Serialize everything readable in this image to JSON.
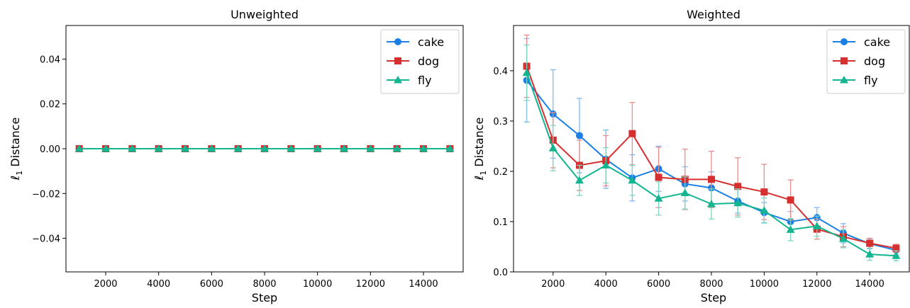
{
  "chart_data": [
    {
      "type": "line",
      "title": "Unweighted",
      "xlabel": "Step",
      "ylabel": "ℓ1 Distance",
      "x": [
        1000,
        2000,
        3000,
        4000,
        5000,
        6000,
        7000,
        8000,
        9000,
        10000,
        11000,
        12000,
        13000,
        14000,
        15000
      ],
      "xlim": [
        500,
        15500
      ],
      "ylim": [
        -0.055,
        0.055
      ],
      "xticks": [
        2000,
        4000,
        6000,
        8000,
        10000,
        12000,
        14000
      ],
      "xtick_labels": [
        "2000",
        "4000",
        "6000",
        "8000",
        "10000",
        "12000",
        "14000"
      ],
      "yticks": [
        -0.04,
        -0.02,
        0.0,
        0.02,
        0.04
      ],
      "ytick_labels": [
        "−0.04",
        "−0.02",
        "0.00",
        "0.02",
        "0.04"
      ],
      "legend_position": "top-right",
      "series": [
        {
          "name": "cake",
          "marker": "circle",
          "color": "#1a80e5",
          "values": [
            0,
            0,
            0,
            0,
            0,
            0,
            0,
            0,
            0,
            0,
            0,
            0,
            0,
            0,
            0
          ],
          "err": [
            0,
            0,
            0,
            0,
            0,
            0,
            0,
            0,
            0,
            0,
            0,
            0,
            0,
            0,
            0
          ]
        },
        {
          "name": "dog",
          "marker": "square",
          "color": "#d62f2f",
          "values": [
            0,
            0,
            0,
            0,
            0,
            0,
            0,
            0,
            0,
            0,
            0,
            0,
            0,
            0,
            0
          ],
          "err": [
            0,
            0,
            0,
            0,
            0,
            0,
            0,
            0,
            0,
            0,
            0,
            0,
            0,
            0,
            0
          ]
        },
        {
          "name": "fly",
          "marker": "triangle",
          "color": "#12b58f",
          "values": [
            0,
            0,
            0,
            0,
            0,
            0,
            0,
            0,
            0,
            0,
            0,
            0,
            0,
            0,
            0
          ],
          "err": [
            0,
            0,
            0,
            0,
            0,
            0,
            0,
            0,
            0,
            0,
            0,
            0,
            0,
            0,
            0
          ]
        }
      ]
    },
    {
      "type": "line",
      "title": "Weighted",
      "xlabel": "Step",
      "ylabel": "ℓ1 Distance",
      "x": [
        1000,
        2000,
        3000,
        4000,
        5000,
        6000,
        7000,
        8000,
        9000,
        10000,
        11000,
        12000,
        13000,
        14000,
        15000
      ],
      "xlim": [
        500,
        15500
      ],
      "ylim": [
        0.0,
        0.49
      ],
      "xticks": [
        2000,
        4000,
        6000,
        8000,
        10000,
        12000,
        14000
      ],
      "xtick_labels": [
        "2000",
        "4000",
        "6000",
        "8000",
        "10000",
        "12000",
        "14000"
      ],
      "yticks": [
        0.0,
        0.1,
        0.2,
        0.3,
        0.4
      ],
      "ytick_labels": [
        "0.0",
        "0.1",
        "0.2",
        "0.3",
        "0.4"
      ],
      "legend_position": "top-right",
      "series": [
        {
          "name": "cake",
          "marker": "circle",
          "color": "#1a80e5",
          "values": [
            0.381,
            0.314,
            0.271,
            0.224,
            0.187,
            0.205,
            0.175,
            0.167,
            0.141,
            0.118,
            0.1,
            0.108,
            0.077,
            0.056,
            0.043
          ],
          "err": [
            0.083,
            0.088,
            0.074,
            0.058,
            0.046,
            0.045,
            0.034,
            0.032,
            0.024,
            0.02,
            0.02,
            0.02,
            0.019,
            0.01,
            0.009
          ]
        },
        {
          "name": "dog",
          "marker": "square",
          "color": "#d62f2f",
          "values": [
            0.409,
            0.262,
            0.212,
            0.221,
            0.275,
            0.188,
            0.184,
            0.184,
            0.17,
            0.159,
            0.143,
            0.085,
            0.07,
            0.057,
            0.047
          ],
          "err": [
            0.062,
            0.055,
            0.05,
            0.05,
            0.062,
            0.06,
            0.06,
            0.056,
            0.057,
            0.055,
            0.04,
            0.02,
            0.02,
            0.01,
            0.008
          ]
        },
        {
          "name": "fly",
          "marker": "triangle",
          "color": "#12b58f",
          "values": [
            0.396,
            0.246,
            0.182,
            0.212,
            0.182,
            0.146,
            0.157,
            0.135,
            0.137,
            0.122,
            0.084,
            0.091,
            0.066,
            0.035,
            0.032
          ],
          "err": [
            0.055,
            0.045,
            0.03,
            0.035,
            0.03,
            0.033,
            0.032,
            0.03,
            0.028,
            0.025,
            0.022,
            0.02,
            0.018,
            0.012,
            0.01
          ]
        }
      ]
    }
  ]
}
